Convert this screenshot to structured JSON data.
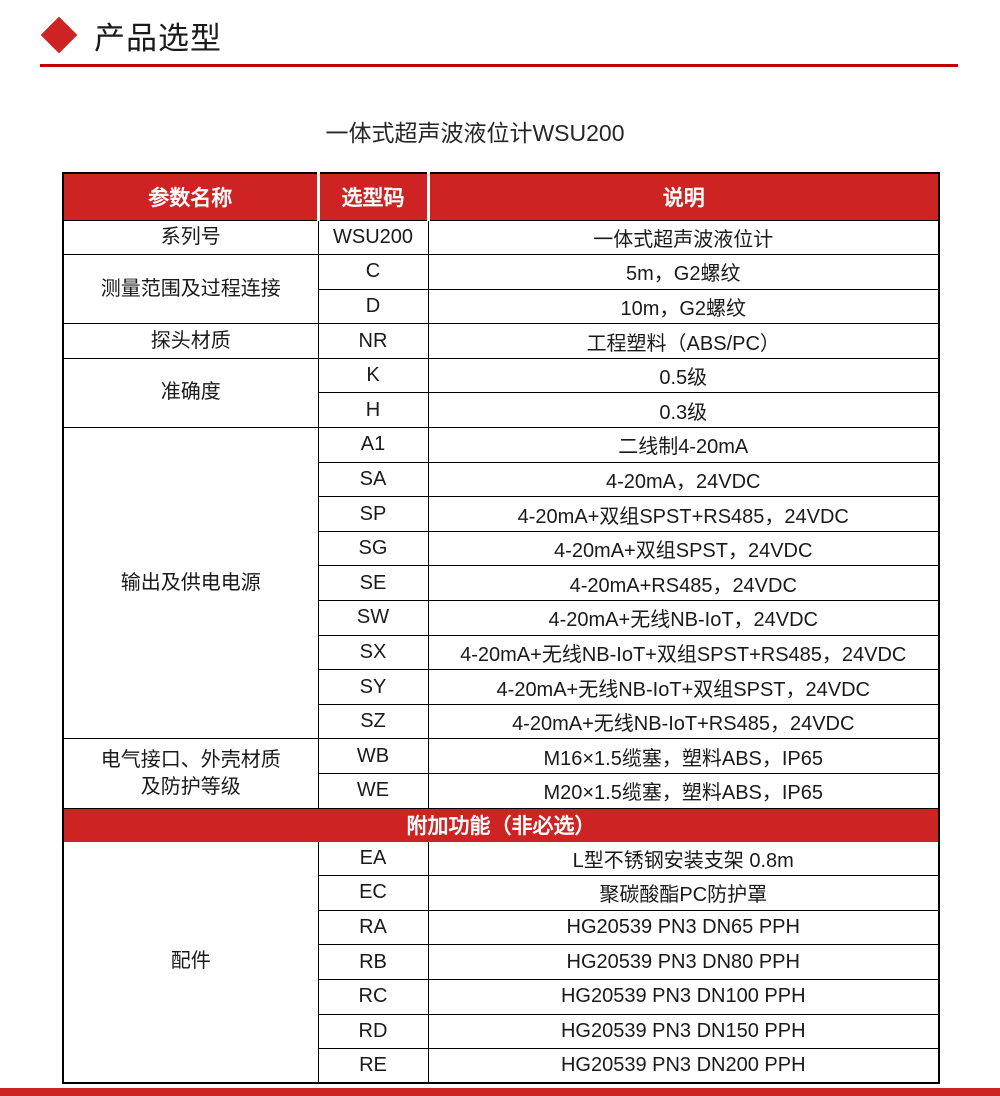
{
  "colors": {
    "brand_red": "#cd2323",
    "rule_red": "#c00000",
    "text_dark": "#1a1a1a",
    "header_text": "#ffffff",
    "border_black": "#000000"
  },
  "page": {
    "section_title": "产品选型",
    "subtitle": "一体式超声波液位计WSU200"
  },
  "table": {
    "headers": [
      "参数名称",
      "选型码",
      "说明"
    ],
    "band": {
      "label": "附加功能（非必选）",
      "before_group": 6
    },
    "groups": [
      {
        "name": "系列号",
        "rows": [
          {
            "code": "WSU200",
            "desc": "一体式超声波液位计"
          }
        ]
      },
      {
        "name": "测量范围及过程连接",
        "rows": [
          {
            "code": "C",
            "desc": "5m，G2螺纹"
          },
          {
            "code": "D",
            "desc": "10m，G2螺纹"
          }
        ]
      },
      {
        "name": "探头材质",
        "rows": [
          {
            "code": "NR",
            "desc": "工程塑料（ABS/PC）"
          }
        ]
      },
      {
        "name": "准确度",
        "rows": [
          {
            "code": "K",
            "desc": "0.5级"
          },
          {
            "code": "H",
            "desc": "0.3级"
          }
        ]
      },
      {
        "name": "输出及供电电源",
        "rows": [
          {
            "code": "A1",
            "desc": "二线制4-20mA"
          },
          {
            "code": "SA",
            "desc": "4-20mA，24VDC"
          },
          {
            "code": "SP",
            "desc": "4-20mA+双组SPST+RS485，24VDC"
          },
          {
            "code": "SG",
            "desc": "4-20mA+双组SPST，24VDC"
          },
          {
            "code": "SE",
            "desc": "4-20mA+RS485，24VDC"
          },
          {
            "code": "SW",
            "desc": "4-20mA+无线NB-IoT，24VDC"
          },
          {
            "code": "SX",
            "desc": "4-20mA+无线NB-IoT+双组SPST+RS485，24VDC"
          },
          {
            "code": "SY",
            "desc": "4-20mA+无线NB-IoT+双组SPST，24VDC"
          },
          {
            "code": "SZ",
            "desc": "4-20mA+无线NB-IoT+RS485，24VDC"
          }
        ]
      },
      {
        "name": "电气接口、外壳材质\n及防护等级",
        "rows": [
          {
            "code": "WB",
            "desc": "M16×1.5缆塞，塑料ABS，IP65"
          },
          {
            "code": "WE",
            "desc": "M20×1.5缆塞，塑料ABS，IP65"
          }
        ]
      },
      {
        "name": "配件",
        "rows": [
          {
            "code": "EA",
            "desc": "L型不锈钢安装支架 0.8m"
          },
          {
            "code": "EC",
            "desc": "聚碳酸酯PC防护罩"
          },
          {
            "code": "RA",
            "desc": "HG20539 PN3 DN65 PPH"
          },
          {
            "code": "RB",
            "desc": "HG20539 PN3 DN80 PPH"
          },
          {
            "code": "RC",
            "desc": "HG20539 PN3 DN100 PPH"
          },
          {
            "code": "RD",
            "desc": "HG20539 PN3 DN150 PPH"
          },
          {
            "code": "RE",
            "desc": "HG20539 PN3 DN200 PPH"
          }
        ]
      }
    ]
  }
}
